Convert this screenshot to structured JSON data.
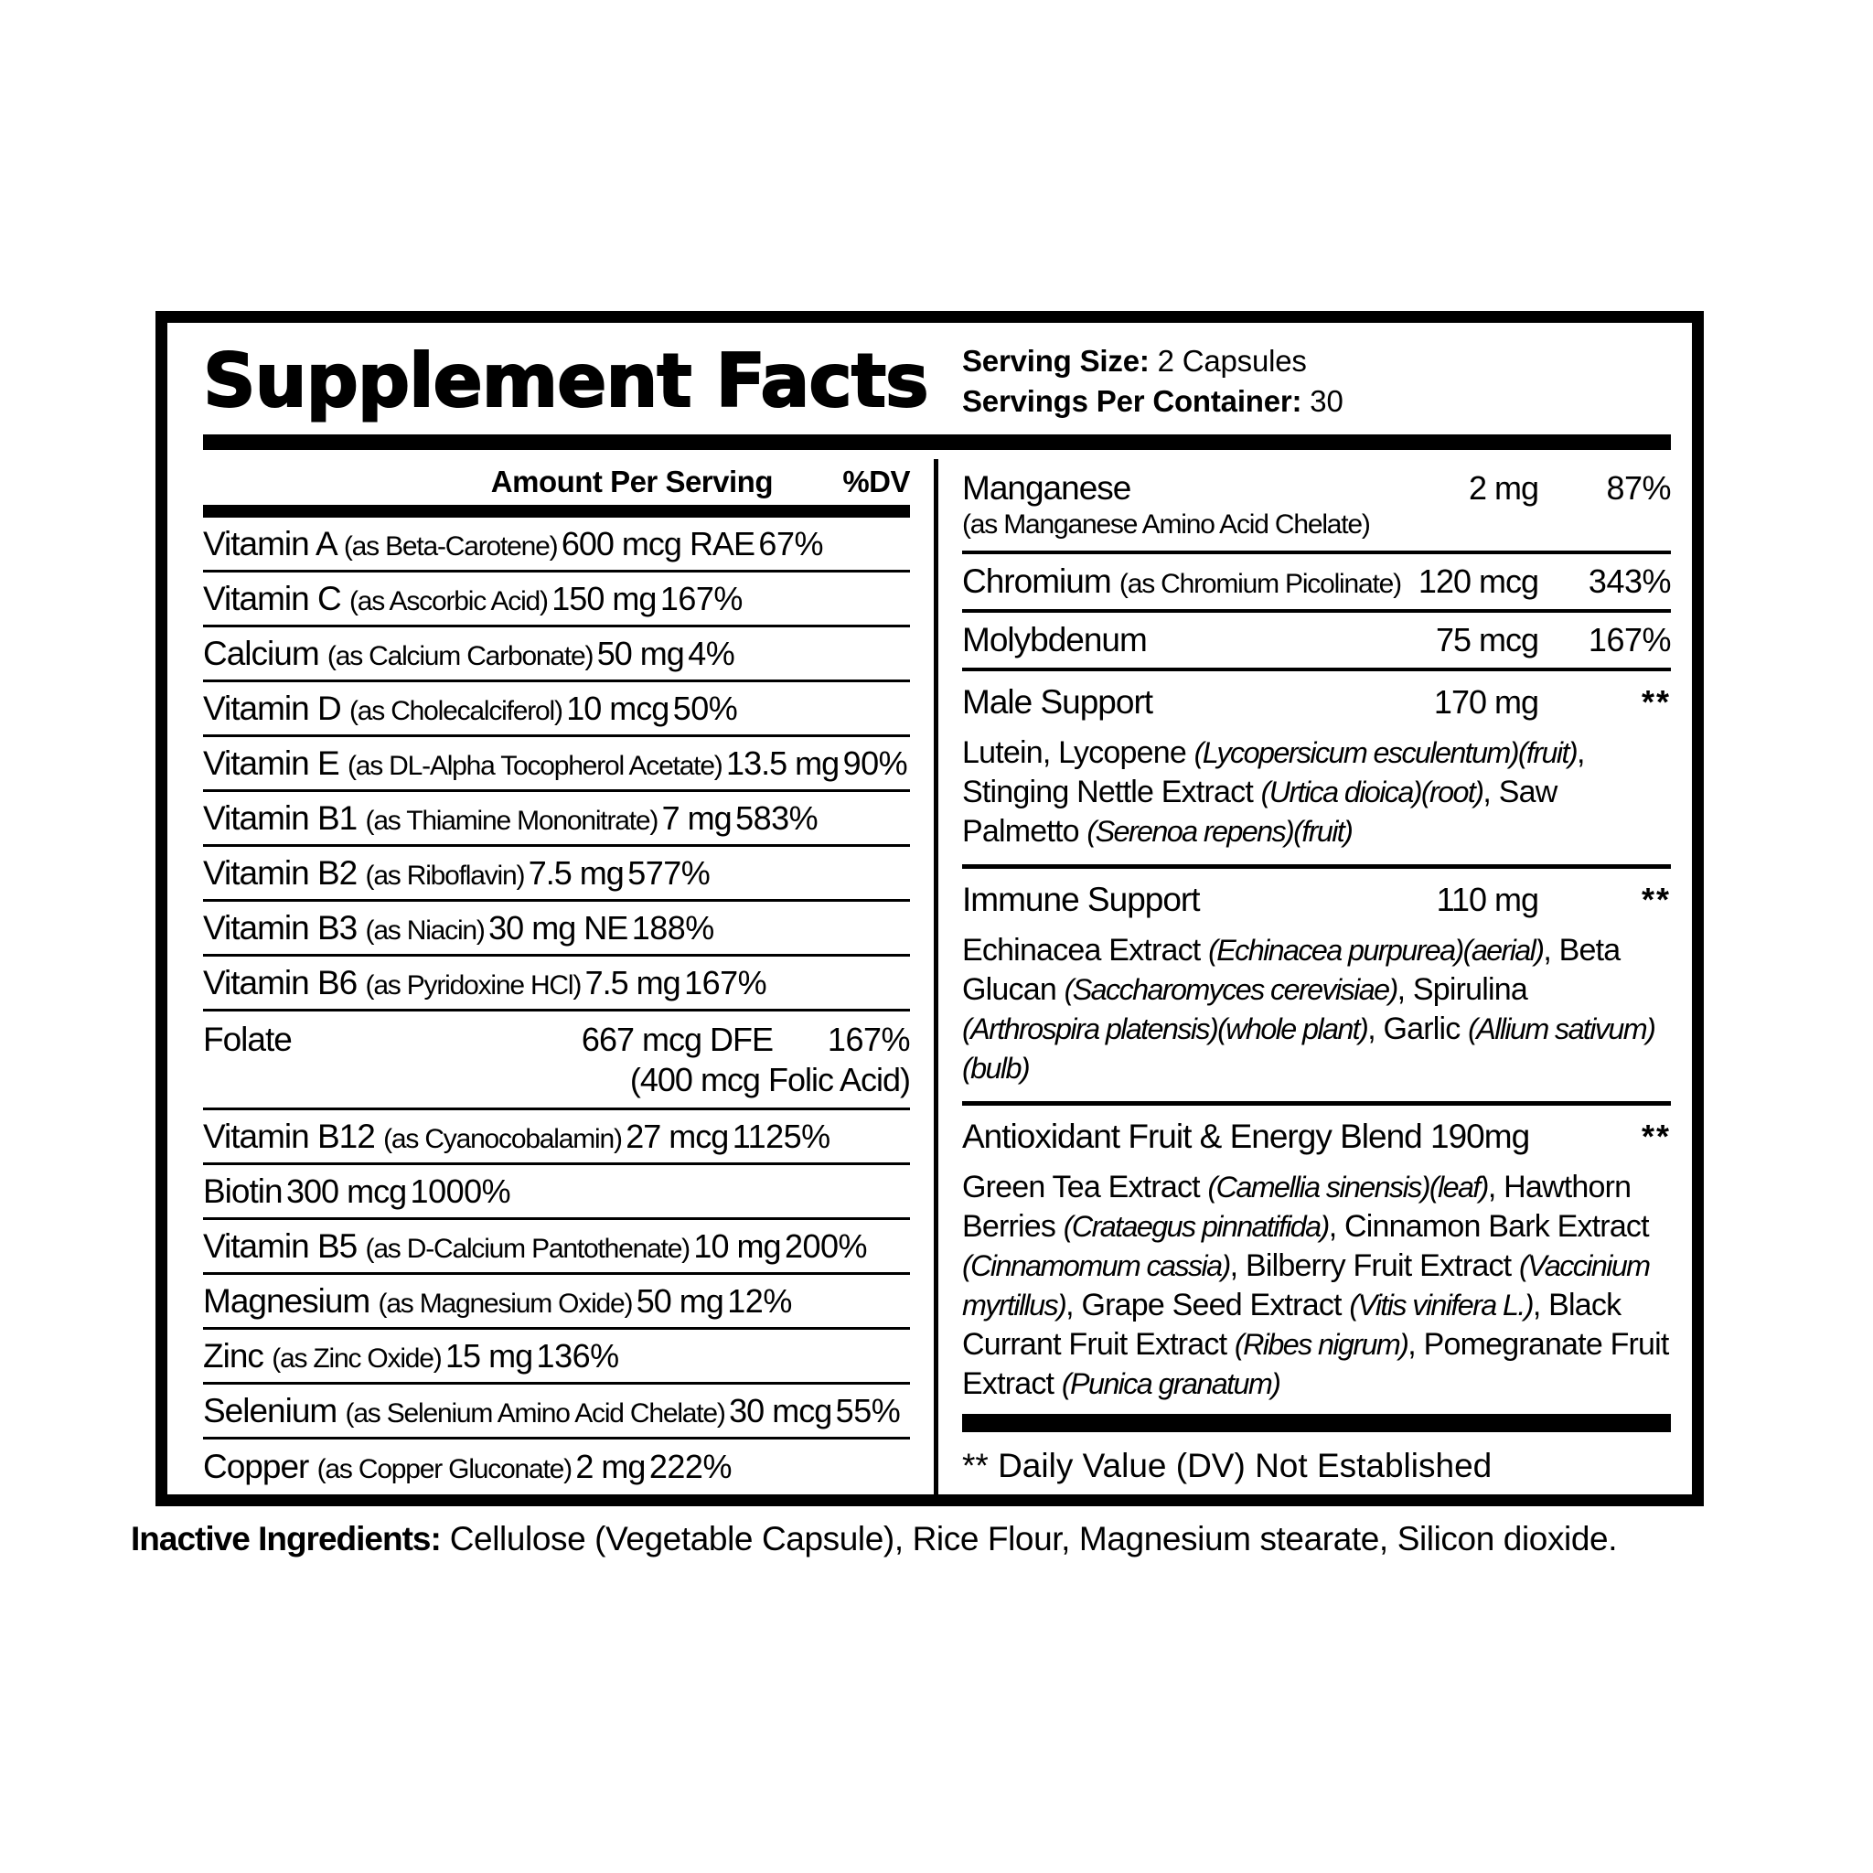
{
  "colors": {
    "ink": "#000000",
    "paper": "#ffffff"
  },
  "title": "Supplement Facts",
  "serving": {
    "size_label": "Serving Size:",
    "size_value": " 2 Capsules",
    "container_label": "Servings Per Container:",
    "container_value": " 30"
  },
  "left_table": {
    "header_amount": "Amount Per Serving",
    "header_dv": "%DV",
    "rows": [
      {
        "name": "Vitamin A ",
        "form": "(as Beta-Carotene)",
        "amount": "600 mcg RAE",
        "dv": "67%"
      },
      {
        "name": "Vitamin C ",
        "form": "(as Ascorbic Acid)",
        "amount": "150 mg",
        "dv": "167%"
      },
      {
        "name": "Calcium ",
        "form": "(as Calcium Carbonate)",
        "amount": "50 mg",
        "dv": "4%"
      },
      {
        "name": "Vitamin D ",
        "form": "(as Cholecalciferol)",
        "amount": "10 mcg",
        "dv": "50%"
      },
      {
        "name": "Vitamin E ",
        "form": "(as DL-Alpha Tocopherol Acetate)",
        "amount": "13.5 mg",
        "dv": "90%"
      },
      {
        "name": "Vitamin B1 ",
        "form": "(as Thiamine Mononitrate)",
        "amount": "7 mg",
        "dv": "583%"
      },
      {
        "name": "Vitamin B2 ",
        "form": "(as Riboflavin)",
        "amount": "7.5 mg",
        "dv": "577%"
      },
      {
        "name": "Vitamin B3 ",
        "form": "(as Niacin)",
        "amount": "30 mg NE",
        "dv": "188%"
      },
      {
        "name": "Vitamin B6 ",
        "form": "(as Pyridoxine HCl)",
        "amount": "7.5 mg",
        "dv": "167%"
      },
      {
        "name": "Folate",
        "form": "",
        "amount": "667 mcg DFE",
        "dv": "167%",
        "amount2": "(400 mcg Folic Acid)"
      },
      {
        "name": "Vitamin B12 ",
        "form": "(as Cyanocobalamin)",
        "amount": "27 mcg",
        "dv": "1125%"
      },
      {
        "name": "Biotin",
        "form": "",
        "amount": "300 mcg",
        "dv": "1000%"
      },
      {
        "name": "Vitamin B5 ",
        "form": "(as D-Calcium Pantothenate)",
        "amount": "10 mg",
        "dv": "200%"
      },
      {
        "name": "Magnesium ",
        "form": "(as Magnesium Oxide)",
        "amount": "50 mg",
        "dv": "12%"
      },
      {
        "name": "Zinc ",
        "form": "(as Zinc Oxide)",
        "amount": "15 mg",
        "dv": "136%"
      },
      {
        "name": "Selenium ",
        "form": "(as Selenium Amino Acid Chelate)",
        "amount": "30 mcg",
        "dv": "55%"
      },
      {
        "name": "Copper ",
        "form": "(as Copper Gluconate)",
        "amount": "2 mg",
        "dv": "222%"
      }
    ]
  },
  "right_table": {
    "minerals": [
      {
        "name": "Manganese",
        "form_inline": "",
        "form_below": "(as Manganese Amino Acid Chelate)",
        "amount": "2 mg",
        "dv": "87%"
      },
      {
        "name": "Chromium ",
        "form_inline": "(as Chromium Picolinate)",
        "form_below": "",
        "amount": "120 mcg",
        "dv": "343%"
      },
      {
        "name": "Molybdenum",
        "form_inline": "",
        "form_below": "",
        "amount": "75 mcg",
        "dv": "167%"
      }
    ],
    "blends": [
      {
        "name": "Male Support",
        "amount": "170 mg",
        "dv": "**",
        "desc": [
          {
            "t": "Lutein, Lycopene ",
            "i": false
          },
          {
            "t": "(Lycopersicum esculentum)(fruit)",
            "i": true
          },
          {
            "t": ", Stinging Nettle Extract ",
            "i": false
          },
          {
            "t": "(Urtica dioica)(root)",
            "i": true
          },
          {
            "t": ", Saw Palmetto ",
            "i": false
          },
          {
            "t": "(Serenoa repens)(fruit)",
            "i": true
          }
        ]
      },
      {
        "name": "Immune Support",
        "amount": "110 mg",
        "dv": "**",
        "desc": [
          {
            "t": "Echinacea Extract ",
            "i": false
          },
          {
            "t": "(Echinacea purpurea)(aerial)",
            "i": true
          },
          {
            "t": ", Beta Glucan ",
            "i": false
          },
          {
            "t": "(Saccharomyces cerevisiae)",
            "i": true
          },
          {
            "t": ", Spirulina ",
            "i": false
          },
          {
            "t": "(Arthrospira platensis)(whole plant)",
            "i": true
          },
          {
            "t": ", Garlic ",
            "i": false
          },
          {
            "t": "(Allium sativum)(bulb)",
            "i": true
          }
        ]
      },
      {
        "name": "Antioxidant Fruit & Energy Blend 190mg",
        "amount": "",
        "dv": "**",
        "desc": [
          {
            "t": "Green Tea Extract ",
            "i": false
          },
          {
            "t": "(Camellia sinensis)(leaf)",
            "i": true
          },
          {
            "t": ", Hawthorn Berries ",
            "i": false
          },
          {
            "t": "(Crataegus pinnatifida)",
            "i": true
          },
          {
            "t": ", Cinnamon Bark Extract ",
            "i": false
          },
          {
            "t": "(Cinnamomum cassia)",
            "i": true
          },
          {
            "t": ", Bilberry Fruit Extract ",
            "i": false
          },
          {
            "t": "(Vaccinium myrtillus)",
            "i": true
          },
          {
            "t": ", Grape Seed Extract ",
            "i": false
          },
          {
            "t": "(Vitis vinifera L.)",
            "i": true
          },
          {
            "t": ", Black Currant Fruit Extract ",
            "i": false
          },
          {
            "t": "(Ribes nigrum)",
            "i": true
          },
          {
            "t": ", Pomegranate Fruit Extract ",
            "i": false
          },
          {
            "t": "(Punica granatum)",
            "i": true
          }
        ]
      }
    ],
    "footnote": "** Daily Value (DV) Not Established"
  },
  "inactive": {
    "label": "Inactive Ingredients:",
    "value": " Cellulose (Vegetable Capsule), Rice Flour, Magnesium stearate, Silicon dioxide."
  }
}
